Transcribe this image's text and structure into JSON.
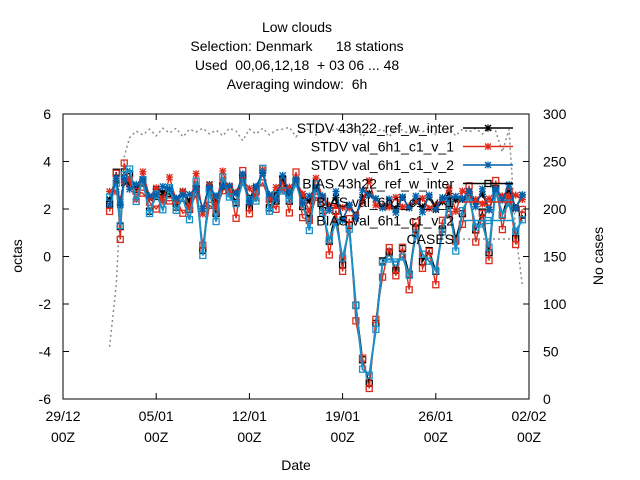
{
  "chart_data": {
    "type": "line",
    "title_lines": [
      "Low clouds",
      "Selection: Denmark      18 stations",
      "Used  00,06,12,18  + 03 06 ... 48",
      "Averaging window:  6h"
    ],
    "xlabel": "Date",
    "ylabel": "octas",
    "y2label": "No cases",
    "ylim": [
      -6,
      6
    ],
    "y2lim": [
      0,
      300
    ],
    "y_ticks": [
      "-6",
      "-4",
      "-2",
      "0",
      "2",
      "4",
      "6"
    ],
    "y2_ticks": [
      "0",
      "50",
      "100",
      "150",
      "200",
      "250",
      "300"
    ],
    "x_ticks": [
      {
        "top": "29/12",
        "bottom": "00Z"
      },
      {
        "top": "05/01",
        "bottom": "00Z"
      },
      {
        "top": "12/01",
        "bottom": "00Z"
      },
      {
        "top": "19/01",
        "bottom": "00Z"
      },
      {
        "top": "26/01",
        "bottom": "00Z"
      },
      {
        "top": "02/02",
        "bottom": "00Z"
      }
    ],
    "xlim_days": [
      0,
      35
    ],
    "legend_position": "top-right",
    "series": [
      {
        "name": "STDV 43h22_ref_w_inter",
        "color": "#000000",
        "marker": "x",
        "axis": "y1"
      },
      {
        "name": "STDV val_6h1_c1_v_1",
        "color": "#dd2a1a",
        "marker": "x",
        "axis": "y1"
      },
      {
        "name": "STDV val_6h1_c1_v_2",
        "color": "#0060ad",
        "marker": "x",
        "axis": "y1"
      },
      {
        "name": "BIAS 43h22_ref_w_inter",
        "color": "#000000",
        "marker": "square",
        "axis": "y1"
      },
      {
        "name": "BIAS val_6h1_c1_v_1",
        "color": "#dd2a1a",
        "marker": "square",
        "axis": "y1"
      },
      {
        "name": "BIAS val_6h1_c1_v_2",
        "color": "#1a90c8",
        "marker": "square",
        "axis": "y1"
      },
      {
        "name": "CASES",
        "color": "#8c8c8c",
        "marker": "none",
        "axis": "y2",
        "dash": "dotted"
      }
    ],
    "cases": {
      "x": [
        3.5,
        4.0,
        4.3,
        4.6,
        5.0,
        5.5,
        6.0,
        6.5,
        7.0,
        7.5,
        8.0,
        8.5,
        9.0,
        9.5,
        10.0,
        10.5,
        11.0,
        11.5,
        12.0,
        12.5,
        13.0,
        13.5,
        14.0,
        14.5,
        15.0,
        15.5,
        16.0,
        16.5,
        17.0,
        17.5,
        18.0,
        18.5,
        19.0,
        19.5,
        20.0,
        20.5,
        21.0,
        21.5,
        22.0,
        22.5,
        23.0,
        23.5,
        24.0,
        24.5,
        25.0,
        25.5,
        26.0,
        26.5,
        27.0,
        27.5,
        28.0,
        28.5,
        29.0,
        29.5,
        30.0,
        30.5,
        31.0,
        31.5,
        32.0,
        32.5,
        33.0,
        33.5,
        34.0,
        34.5
      ],
      "values": [
        55,
        120,
        200,
        255,
        275,
        282,
        278,
        284,
        277,
        285,
        280,
        285,
        276,
        284,
        281,
        285,
        279,
        283,
        277,
        285,
        282,
        272,
        284,
        279,
        285,
        278,
        283,
        284,
        286,
        276,
        285,
        283,
        278,
        284,
        281,
        285,
        279,
        285,
        284,
        276,
        285,
        282,
        284,
        276,
        285,
        283,
        279,
        284,
        281,
        285,
        278,
        284,
        285,
        277,
        284,
        281,
        285,
        279,
        284,
        282,
        260,
        284,
        175,
        120
      ]
    },
    "mean_values": {
      "x": [
        3.5,
        4.0,
        4.3,
        4.6,
        5.0,
        5.5,
        6.0,
        6.5,
        7.0,
        7.5,
        8.0,
        8.5,
        9.0,
        9.5,
        10.0,
        10.5,
        11.0,
        11.5,
        12.0,
        12.5,
        13.0,
        13.5,
        14.0,
        14.5,
        15.0,
        15.5,
        16.0,
        16.5,
        17.0,
        17.5,
        18.0,
        18.5,
        19.0,
        19.5,
        20.0,
        20.5,
        21.0,
        21.5,
        22.0,
        22.5,
        23.0,
        23.5,
        24.0,
        24.5,
        25.0,
        25.5,
        26.0,
        26.5,
        27.0,
        27.5,
        28.0,
        28.5,
        29.0,
        29.5,
        30.0,
        30.5,
        31.0,
        31.5,
        32.0,
        32.5,
        33.0,
        33.5,
        34.0,
        34.5
      ],
      "bias": [
        2.2,
        3.3,
        1.3,
        3.6,
        3.4,
        2.6,
        3.2,
        1.9,
        2.4,
        2.3,
        2.8,
        2.0,
        2.3,
        1.9,
        3.0,
        0.1,
        2.7,
        1.8,
        3.1,
        2.6,
        2.2,
        3.4,
        2.1,
        2.5,
        3.7,
        2.1,
        2.3,
        3.0,
        2.4,
        3.2,
        2.0,
        1.4,
        3.0,
        1.9,
        0.5,
        1.8,
        -0.2,
        1.2,
        -2.2,
        -4.4,
        -5.2,
        -3.0,
        -0.3,
        0.2,
        -0.5,
        0.1,
        -0.8,
        1.2,
        -0.2,
        0.0,
        -0.6,
        1.2,
        2.1,
        0.5,
        1.9,
        2.6,
        1.0,
        1.7,
        0.3,
        2.8,
        1.6,
        2.6,
        0.9,
        1.6
      ],
      "stdv": [
        2.4,
        3.0,
        2.2,
        3.2,
        3.0,
        2.7,
        3.3,
        2.5,
        2.7,
        2.6,
        3.0,
        2.4,
        2.6,
        2.3,
        3.1,
        1.9,
        2.9,
        2.3,
        3.2,
        2.8,
        2.6,
        3.3,
        2.5,
        2.7,
        3.5,
        2.5,
        2.6,
        3.1,
        2.7,
        3.2,
        2.4,
        2.2,
        3.0,
        2.5,
        2.0,
        2.4,
        1.7,
        2.1,
        1.6,
        2.5,
        2.8,
        2.3,
        2.0,
        2.2,
        2.1,
        2.3,
        2.0,
        2.4,
        2.1,
        2.3,
        2.0,
        2.4,
        2.6,
        2.2,
        2.5,
        2.7,
        2.2,
        2.5,
        2.1,
        2.8,
        2.4,
        2.7,
        2.2,
        2.5
      ]
    }
  }
}
